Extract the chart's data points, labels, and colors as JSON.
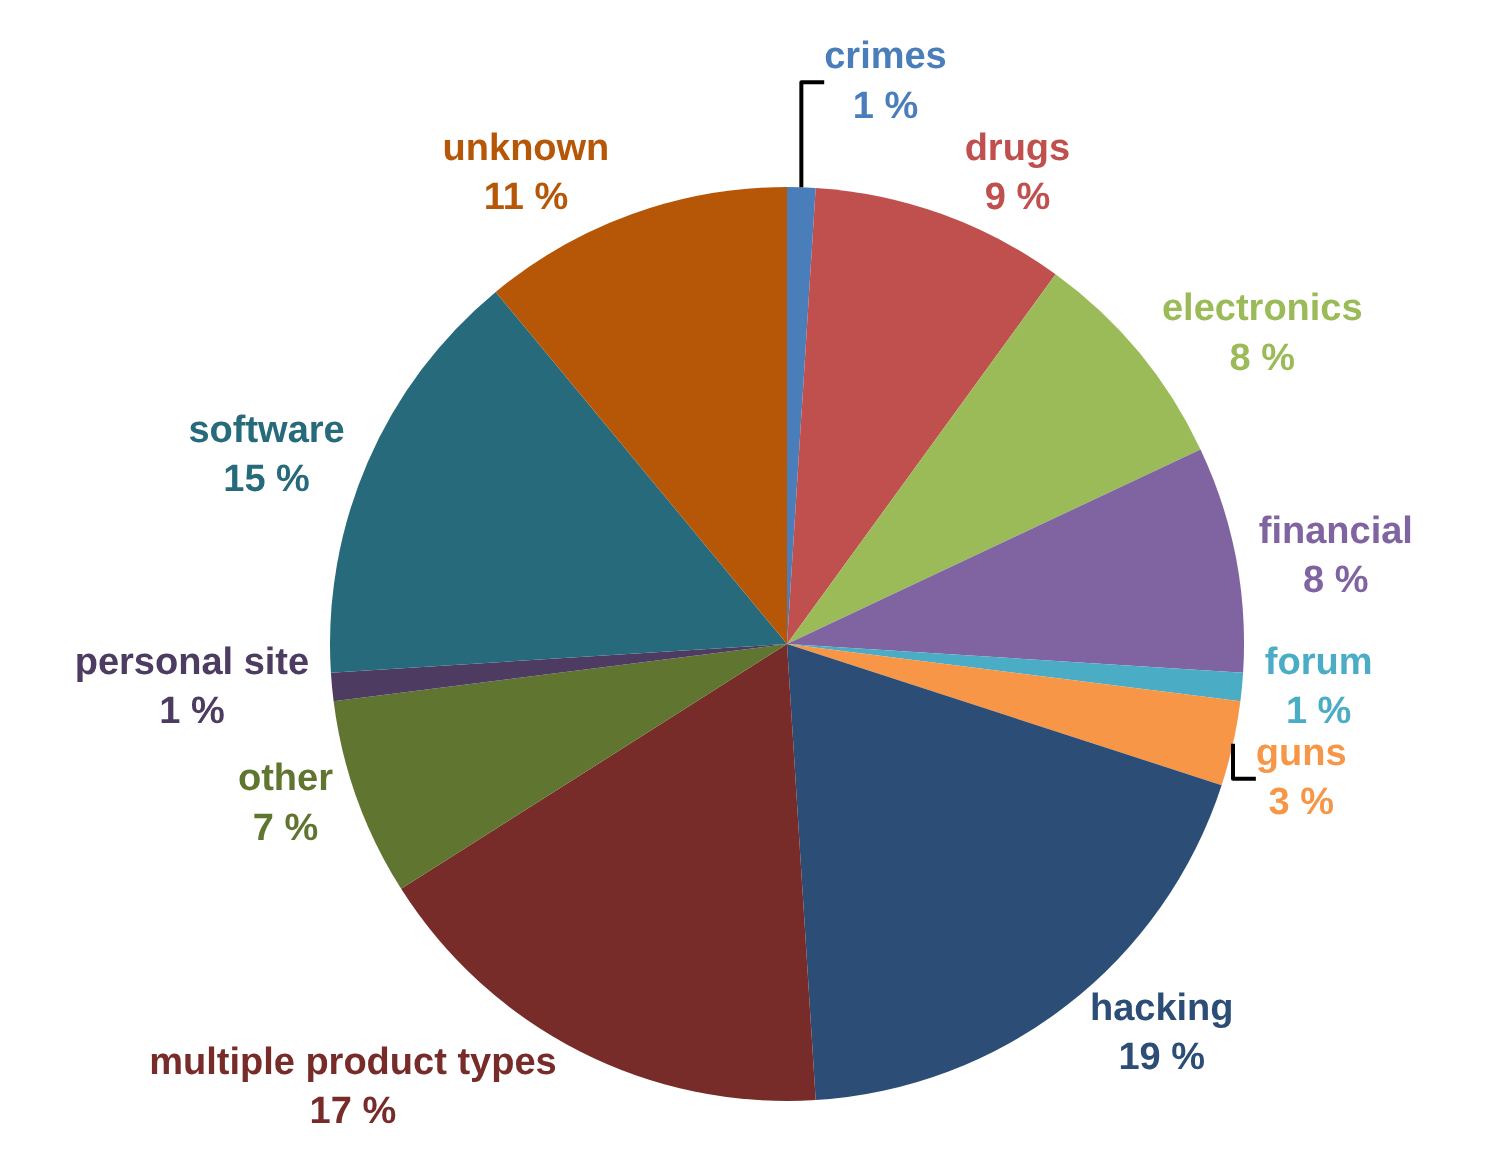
{
  "chart_data": {
    "type": "pie",
    "categories": [
      "crimes",
      "drugs",
      "electronics",
      "financial",
      "forum",
      "guns",
      "hacking",
      "multiple product types",
      "other",
      "personal site",
      "software",
      "unknown"
    ],
    "values": [
      1,
      9,
      8,
      8,
      1,
      3,
      19,
      17,
      7,
      1,
      15,
      11
    ],
    "value_labels": [
      "1 %",
      "9 %",
      "8 %",
      "8 %",
      "1 %",
      "3 %",
      "19 %",
      "17 %",
      "7 %",
      "1 %",
      "15 %",
      "11 %"
    ],
    "colors": [
      "#4a7ebb",
      "#c0504d",
      "#9bbb59",
      "#8064a2",
      "#4bacc6",
      "#f79646",
      "#2c4d75",
      "#772c2a",
      "#5f7530",
      "#4d3b62",
      "#276a7c",
      "#b65708"
    ],
    "legend": false
  }
}
